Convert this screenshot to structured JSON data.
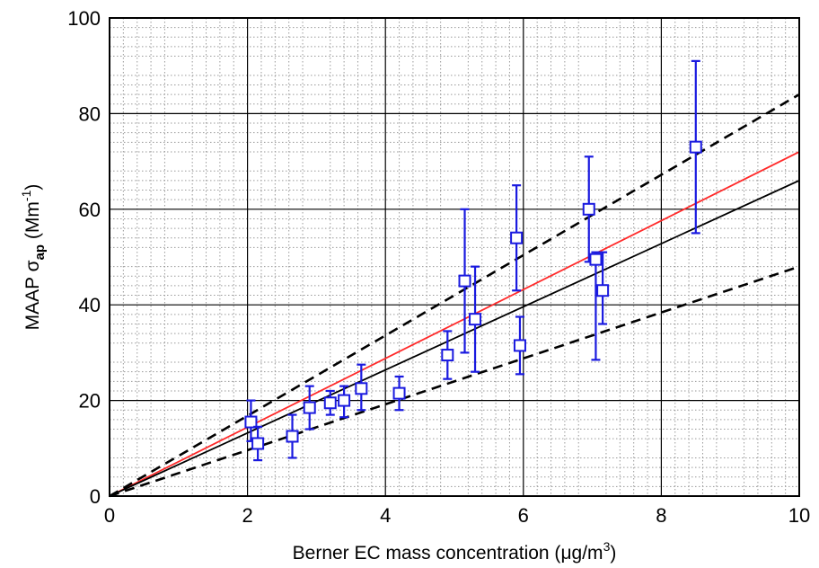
{
  "chart_data": {
    "type": "scatter",
    "xlabel": {
      "prefix": "Berner EC mass concentration (",
      "mu": "μ",
      "unit": "g/m",
      "sup": "3",
      "suffix": ")"
    },
    "ylabel": {
      "prefix": "MAAP  ",
      "sigma": "σ",
      "sub": "ap",
      "unit": " (Mm",
      "sup": "-1",
      "suffix": ")"
    },
    "xlim": [
      0,
      10
    ],
    "ylim": [
      0,
      100
    ],
    "xticks": [
      "0",
      "2",
      "4",
      "6",
      "8",
      "10"
    ],
    "yticks": [
      "0",
      "20",
      "40",
      "60",
      "80",
      "100"
    ],
    "grid": {
      "major": true,
      "minor": true
    },
    "colors": {
      "points": "#1a1adf",
      "fit": "#ff2a2a",
      "reference": "#000000"
    },
    "points": [
      {
        "x": 2.05,
        "y": 15.5,
        "lo": 11.5,
        "hi": 20.0
      },
      {
        "x": 2.15,
        "y": 11.0,
        "lo": 7.5,
        "hi": 14.5
      },
      {
        "x": 2.65,
        "y": 12.5,
        "lo": 8.0,
        "hi": 17.0
      },
      {
        "x": 2.9,
        "y": 18.5,
        "lo": 14.0,
        "hi": 23.0
      },
      {
        "x": 3.2,
        "y": 19.5,
        "lo": 17.0,
        "hi": 22.0
      },
      {
        "x": 3.4,
        "y": 20.0,
        "lo": 16.5,
        "hi": 23.0
      },
      {
        "x": 3.65,
        "y": 22.5,
        "lo": 18.0,
        "hi": 27.5
      },
      {
        "x": 4.2,
        "y": 21.5,
        "lo": 18.0,
        "hi": 25.0
      },
      {
        "x": 4.9,
        "y": 29.5,
        "lo": 24.5,
        "hi": 34.5
      },
      {
        "x": 5.15,
        "y": 45.0,
        "lo": 30.0,
        "hi": 60.0
      },
      {
        "x": 5.3,
        "y": 37.0,
        "lo": 26.0,
        "hi": 48.0
      },
      {
        "x": 5.9,
        "y": 54.0,
        "lo": 43.0,
        "hi": 65.0
      },
      {
        "x": 5.95,
        "y": 31.5,
        "lo": 25.5,
        "hi": 37.5
      },
      {
        "x": 6.95,
        "y": 60.0,
        "lo": 49.0,
        "hi": 71.0
      },
      {
        "x": 7.05,
        "y": 49.5,
        "lo": 28.5,
        "hi": 51.0
      },
      {
        "x": 7.15,
        "y": 43.0,
        "lo": 36.0,
        "hi": 51.0
      },
      {
        "x": 8.5,
        "y": 73.0,
        "lo": 55.0,
        "hi": 91.0
      }
    ],
    "lines": [
      {
        "kind": "fit",
        "style": "solid",
        "color": "#ff2a2a",
        "x": [
          0,
          10
        ],
        "y": [
          0,
          72
        ]
      },
      {
        "kind": "reference",
        "style": "solid",
        "color": "#000000",
        "x": [
          0,
          10
        ],
        "y": [
          0,
          66
        ]
      },
      {
        "kind": "upper-bound",
        "style": "dashed",
        "color": "#000000",
        "x": [
          0,
          10
        ],
        "y": [
          0,
          84
        ]
      },
      {
        "kind": "lower-bound",
        "style": "dashed",
        "color": "#000000",
        "x": [
          0,
          10
        ],
        "y": [
          0,
          48
        ]
      }
    ]
  }
}
